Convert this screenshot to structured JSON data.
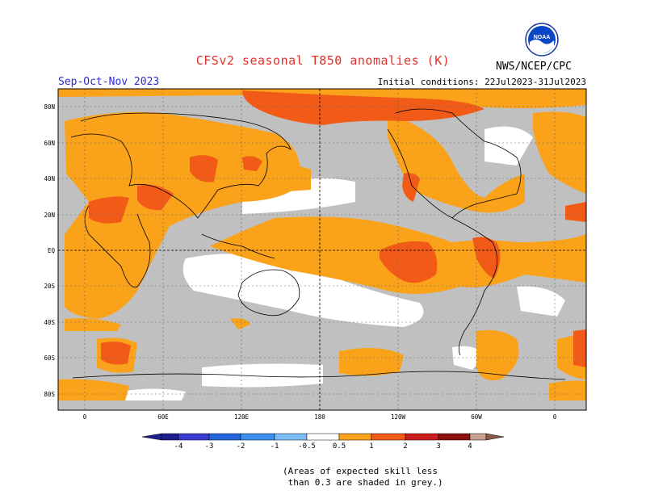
{
  "title": "CFSv2 seasonal T850 anomalies (K)",
  "season": "Sep-Oct-Nov 2023",
  "initial_conditions": "Initial conditions: 22Jul2023-31Jul2023",
  "agency": "NWS/NCEP/CPC",
  "logo_text": "NOAA",
  "lat_labels": [
    "80N",
    "60N",
    "40N",
    "20N",
    "EQ",
    "20S",
    "40S",
    "60S",
    "80S"
  ],
  "lon_labels": [
    "0",
    "60E",
    "120E",
    "180",
    "120W",
    "60W",
    "0"
  ],
  "colorbar": {
    "labels": [
      "-4",
      "-3",
      "-2",
      "-1",
      "-0.5",
      "0.5",
      "1",
      "2",
      "3",
      "4"
    ],
    "colors": [
      "#1e1e8c",
      "#3a3ad2",
      "#2466e0",
      "#3a8ef0",
      "#7cbcf8",
      "#ffffff",
      "#f9a21a",
      "#f25a18",
      "#cc1c1c",
      "#8c1010",
      "#c8a090",
      "#8a5a48"
    ]
  },
  "note": "(Areas of expected skill less\n than 0.3 are shaded in grey.)"
}
